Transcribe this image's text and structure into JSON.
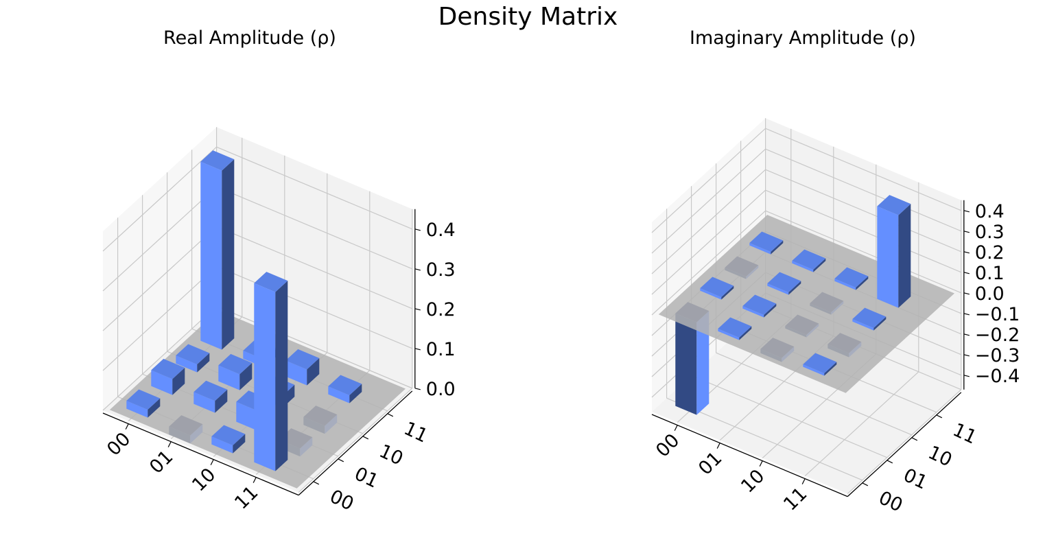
{
  "figure": {
    "title": "Density Matrix"
  },
  "colors": {
    "bar_front": "#648fff",
    "bar_top": "#5a82e6",
    "bar_side": "#324a84",
    "bar_neg_top": "#2e4177",
    "plane": "#b3b3b3",
    "pane_back": "#f2f2f2",
    "pane_side": "#f7f7f7",
    "grid": "#c8c8c8"
  },
  "chart_data": [
    {
      "type": "bar3d",
      "title": "Real Amplitude (ρ)",
      "x_tick_labels": [
        "00",
        "01",
        "10",
        "11"
      ],
      "y_tick_labels": [
        "00",
        "01",
        "10",
        "11"
      ],
      "z_tick_labels": [
        "0.0",
        "0.1",
        "0.2",
        "0.3",
        "0.4"
      ],
      "zlim": [
        0.0,
        0.45
      ],
      "matrix": [
        [
          0.45,
          0.02,
          0.04,
          0.02
        ],
        [
          0.02,
          0.04,
          0.03,
          -0.02
        ],
        [
          0.04,
          0.03,
          0.05,
          -0.02
        ],
        [
          0.02,
          -0.02,
          0.02,
          0.45
        ]
      ]
    },
    {
      "type": "bar3d",
      "title": "Imaginary Amplitude (ρ)",
      "x_tick_labels": [
        "00",
        "01",
        "10",
        "11"
      ],
      "y_tick_labels": [
        "00",
        "01",
        "10",
        "11"
      ],
      "z_tick_labels": [
        "0.4",
        "0.3",
        "0.2",
        "0.1",
        "0.0",
        "−0.1",
        "−0.2",
        "−0.3",
        "−0.4"
      ],
      "zlim": [
        -0.45,
        0.45
      ],
      "matrix": [
        [
          0.0,
          -0.0,
          0.0,
          0.45
        ],
        [
          -0.01,
          0.0,
          -0.01,
          0.01
        ],
        [
          -0.0,
          0.01,
          -0.01,
          -0.02
        ],
        [
          -0.45,
          0.0,
          -0.02,
          0.0
        ]
      ]
    }
  ]
}
